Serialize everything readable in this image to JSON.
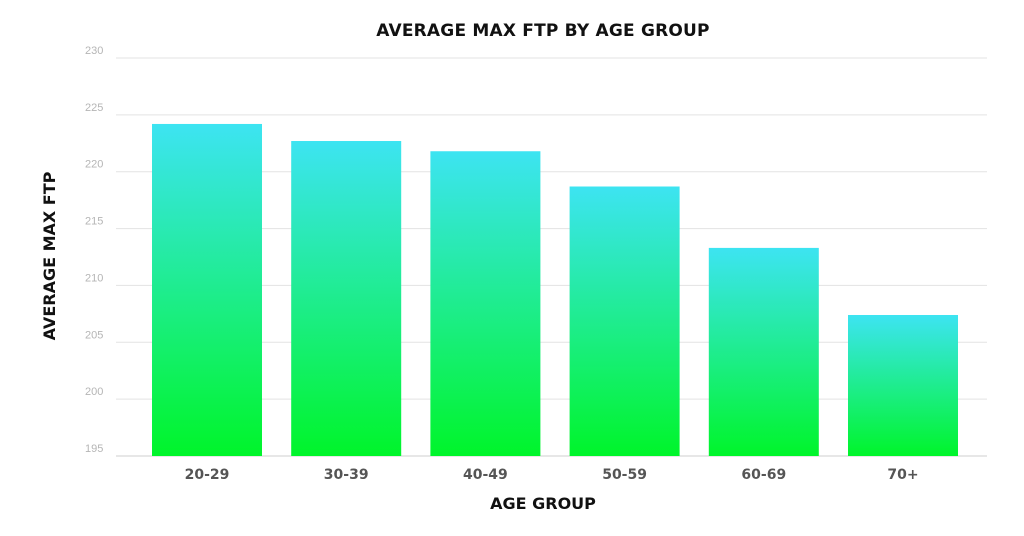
{
  "chart_data": {
    "type": "bar",
    "title": "AVERAGE MAX FTP BY AGE GROUP",
    "xlabel": "AGE GROUP",
    "ylabel": "AVERAGE MAX FTP",
    "categories": [
      "20-29",
      "30-39",
      "40-49",
      "50-59",
      "60-69",
      "70+"
    ],
    "values": [
      224.2,
      222.7,
      221.8,
      218.7,
      213.3,
      207.4
    ],
    "ylim": [
      195,
      230
    ],
    "yticks": [
      "195",
      "200",
      "205",
      "210",
      "215",
      "220",
      "225",
      "230"
    ],
    "grid": true,
    "legend": "none",
    "colors": {
      "bar_top": "#3de4f2",
      "bar_bottom": "#00f52a"
    }
  }
}
